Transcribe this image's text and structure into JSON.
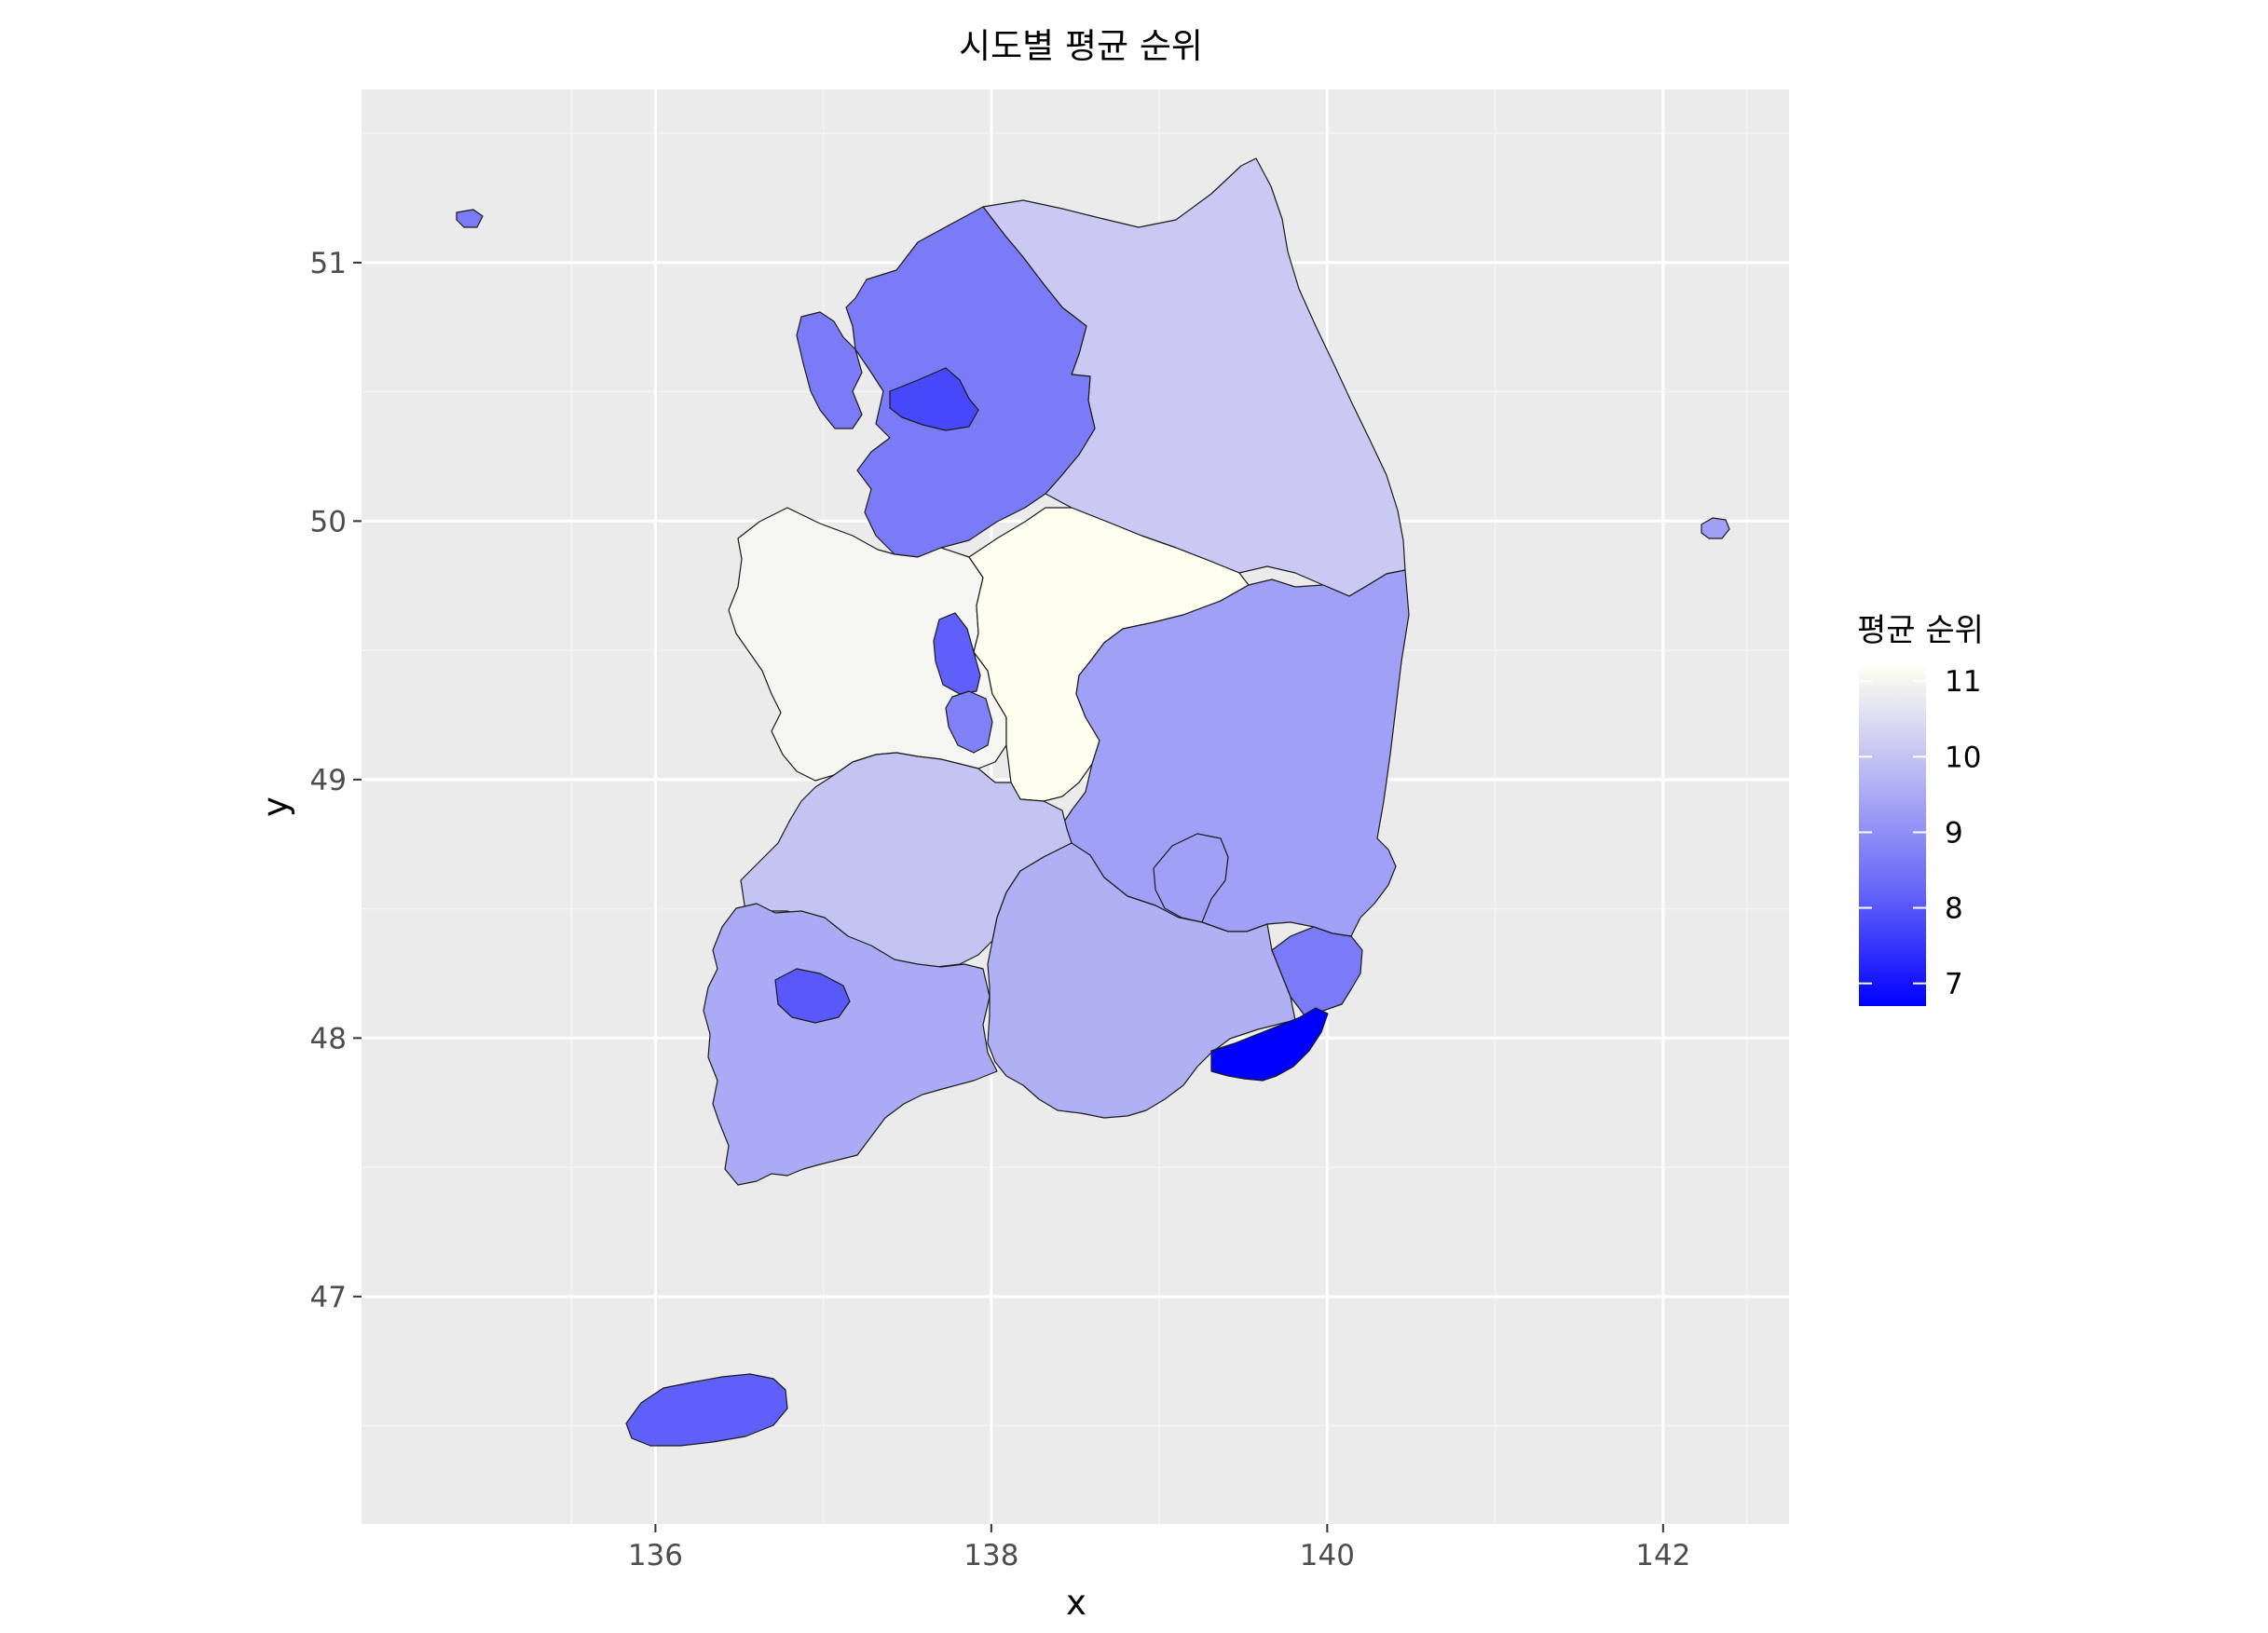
{
  "chart_data": {
    "type": "choropleth map",
    "title": "시도별 평균 순위",
    "xlabel": "x",
    "ylabel": "y",
    "xlim": [
      134.25,
      142.75
    ],
    "ylim": [
      46.12,
      51.67
    ],
    "x_ticks": [
      136,
      138,
      140,
      142
    ],
    "y_ticks": [
      47,
      48,
      49,
      50,
      51
    ],
    "grid": true,
    "legend": {
      "title": "평균 순위",
      "position": "right",
      "range": [
        6.7,
        11.2
      ],
      "breaks": [
        11,
        10,
        9,
        8,
        7
      ],
      "low_color": "#0000FF",
      "high_color": "#FFFFF0"
    },
    "regions": [
      {
        "id": "gangwon",
        "value": 10.1
      },
      {
        "id": "gyeonggi",
        "value": 8.6
      },
      {
        "id": "seoul",
        "value": 7.7
      },
      {
        "id": "incheon",
        "value": 8.6
      },
      {
        "id": "chungnam",
        "value": 11.0
      },
      {
        "id": "chungbuk",
        "value": 11.2
      },
      {
        "id": "sejong",
        "value": 8.1
      },
      {
        "id": "daejeon",
        "value": 8.7
      },
      {
        "id": "gyeongbuk",
        "value": 9.3
      },
      {
        "id": "daegu",
        "value": 9.3
      },
      {
        "id": "jeonbuk",
        "value": 10.0
      },
      {
        "id": "jeonnam",
        "value": 9.5
      },
      {
        "id": "gwangju",
        "value": 8.0
      },
      {
        "id": "gyeongnam",
        "value": 9.6
      },
      {
        "id": "ulsan",
        "value": 8.6
      },
      {
        "id": "busan",
        "value": 6.7
      },
      {
        "id": "jeju",
        "value": 8.1
      },
      {
        "id": "ulleung",
        "value": 9.3
      },
      {
        "id": "baengnyeong",
        "value": 8.6
      }
    ]
  }
}
